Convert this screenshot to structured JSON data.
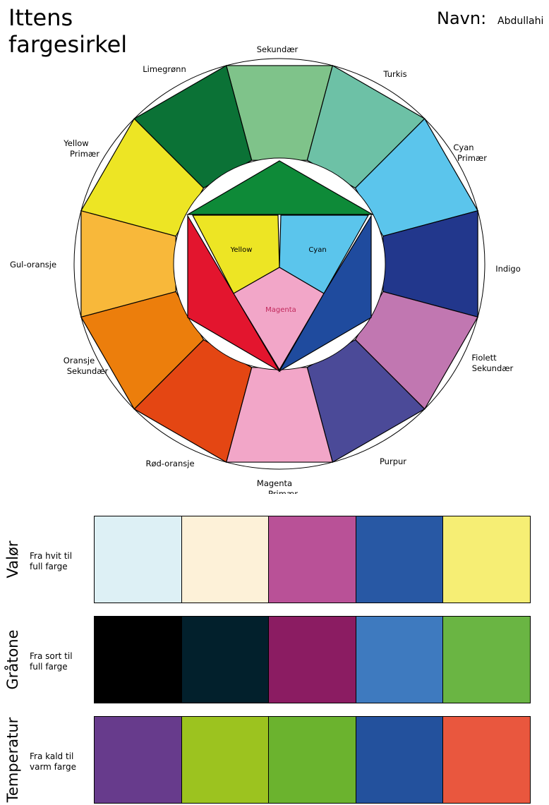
{
  "header": {
    "title_line1": "Ittens",
    "title_line2": "fargesirkel",
    "navn_label": "Navn:",
    "navn_value": "Abdullahi"
  },
  "wheel": {
    "segments": [
      {
        "color": "#7fc38a",
        "label": [
          "Sekundær"
        ]
      },
      {
        "color": "#6dc1a6",
        "label": [
          "Turkis"
        ]
      },
      {
        "color": "#5bc5ec",
        "label": [
          "Cyan",
          "Primær"
        ]
      },
      {
        "color": "#22378c",
        "label": [
          "Indigo"
        ]
      },
      {
        "color": "#c177b1",
        "label": [
          "Fiolett",
          "Sekundær"
        ]
      },
      {
        "color": "#4b4a98",
        "label": [
          "Purpur"
        ]
      },
      {
        "color": "#f2a6c8",
        "label": [
          "Magenta",
          "Primær"
        ]
      },
      {
        "color": "#e44613",
        "label": [
          "Rød-oransje"
        ]
      },
      {
        "color": "#ec7e0c",
        "label": [
          "Oransje",
          "Sekundær"
        ]
      },
      {
        "color": "#f8b83a",
        "label": [
          "Gul-oransje"
        ]
      },
      {
        "color": "#ede524",
        "label": [
          "Yellow",
          "Primær"
        ]
      },
      {
        "color": "#0b7236",
        "label": [
          "Limegrønn"
        ]
      }
    ],
    "inner": {
      "top_triangle_color": "#0e8a38",
      "left_triangle_color": "#e3152e",
      "right_triangle_color": "#1f4b9e",
      "yellow_color": "#ede524",
      "cyan_color": "#5bc5ec",
      "magenta_color": "#f2a6c8",
      "yellow_label": "Yellow",
      "cyan_label": "Cyan",
      "magenta_label": "Magenta"
    }
  },
  "rows": [
    {
      "title": "Valør",
      "desc_line1": "Fra hvit til",
      "desc_line2": "full farge",
      "colors": [
        "#ddf0f5",
        "#fdf1d8",
        "#b95197",
        "#2858a4",
        "#f6ee74"
      ]
    },
    {
      "title": "Gråtone",
      "desc_line1": "Fra sort til",
      "desc_line2": "full farge",
      "colors": [
        "#000000",
        "#02202c",
        "#8b1c62",
        "#3e7abf",
        "#6ab543"
      ]
    },
    {
      "title": "Temperatur",
      "desc_line1": "Fra kald til",
      "desc_line2": "varm farge",
      "colors": [
        "#673b8c",
        "#9cc31f",
        "#6bb32e",
        "#23519d",
        "#e9573e"
      ]
    }
  ]
}
